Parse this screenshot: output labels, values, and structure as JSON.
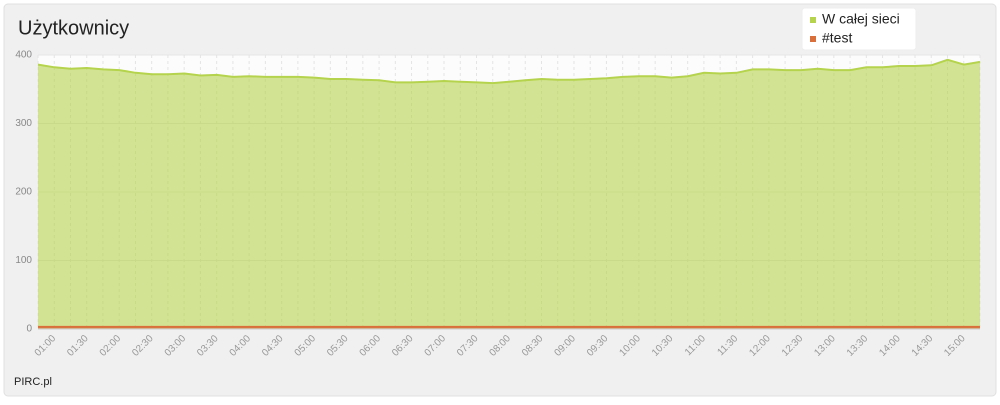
{
  "chart_data": {
    "type": "area",
    "title": "Użytkownicy",
    "credit": "PIRC.pl",
    "categories": [
      null,
      "01:00",
      null,
      "01:30",
      null,
      "02:00",
      null,
      "02:30",
      null,
      "03:00",
      null,
      "03:30",
      null,
      "04:00",
      null,
      "04:30",
      null,
      "05:00",
      null,
      "05:30",
      null,
      "06:00",
      null,
      "06:30",
      null,
      "07:00",
      null,
      "07:30",
      null,
      "08:00",
      null,
      "08:30",
      null,
      "09:00",
      null,
      "09:30",
      null,
      "10:00",
      null,
      "10:30",
      null,
      "11:00",
      null,
      "11:30",
      null,
      "12:00",
      null,
      "12:30",
      null,
      "13:00",
      null,
      "13:30",
      null,
      "14:00",
      null,
      "14:30",
      null,
      "15:00",
      null
    ],
    "series": [
      {
        "name": "W całej sieci",
        "color": "#b5d34d",
        "values": [
          386,
          382,
          380,
          381,
          379,
          378,
          374,
          372,
          372,
          373,
          370,
          371,
          368,
          369,
          368,
          368,
          368,
          367,
          365,
          365,
          364,
          363,
          360,
          360,
          361,
          362,
          361,
          360,
          359,
          361,
          363,
          365,
          364,
          364,
          365,
          366,
          368,
          369,
          369,
          367,
          369,
          374,
          373,
          374,
          379,
          379,
          378,
          378,
          380,
          378,
          378,
          382,
          382,
          384,
          384,
          385,
          393,
          386,
          390
        ]
      },
      {
        "name": "#test",
        "color": "#d9703c",
        "values": [
          3,
          3,
          3,
          3,
          3,
          3,
          3,
          3,
          3,
          3,
          3,
          3,
          3,
          3,
          3,
          3,
          3,
          3,
          3,
          3,
          3,
          3,
          3,
          3,
          3,
          3,
          3,
          3,
          3,
          3,
          3,
          3,
          3,
          3,
          3,
          3,
          3,
          3,
          3,
          3,
          3,
          3,
          3,
          3,
          3,
          3,
          3,
          3,
          3,
          3,
          3,
          3,
          3,
          3,
          3,
          3,
          3,
          3,
          3
        ]
      }
    ],
    "ylim": [
      0,
      400
    ],
    "yticks": [
      0,
      100,
      200,
      300,
      400
    ],
    "grid": true,
    "legend": "top-right"
  }
}
